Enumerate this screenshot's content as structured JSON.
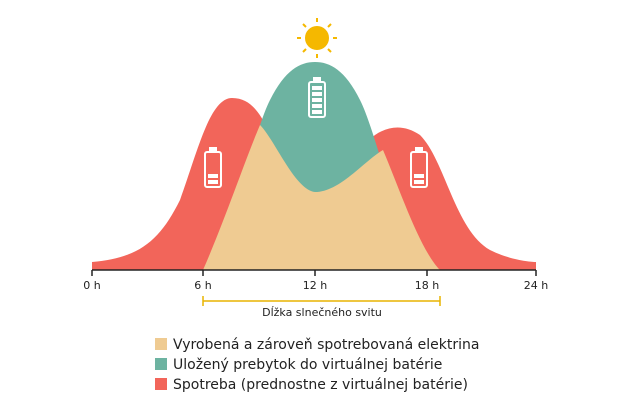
{
  "axis": {
    "ticks": [
      "0 h",
      "6 h",
      "12 h",
      "18 h",
      "24 h"
    ]
  },
  "annotation": "Dĺžka slnečného svitu",
  "legend": [
    "Vyrobená a zároveň spotrebovaná elektrina",
    "Uložený prebytok do virtuálnej batérie",
    "Spotreba (prednostne z virtuálnej batérie)"
  ]
}
